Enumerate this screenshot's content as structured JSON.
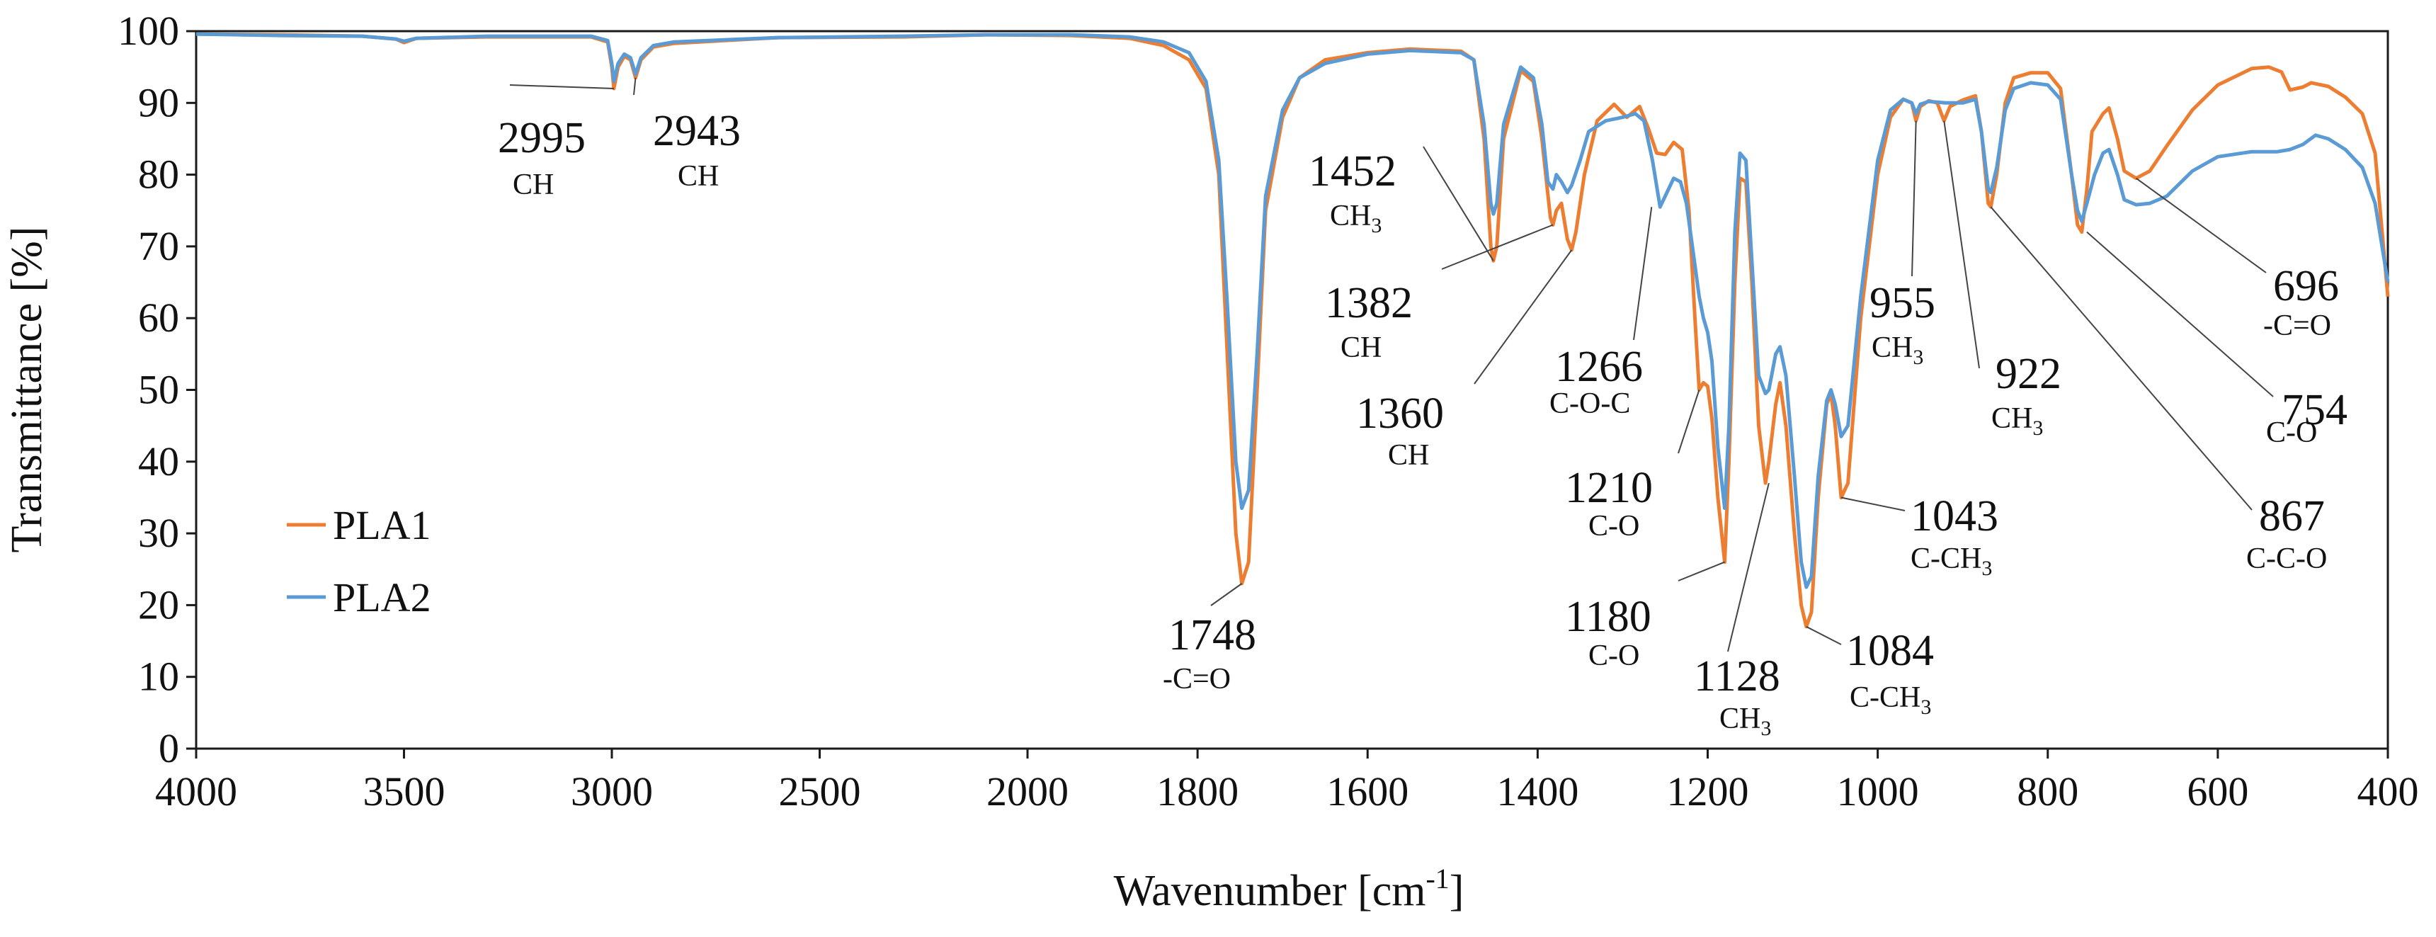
{
  "chart_data": {
    "type": "line",
    "title": "",
    "xlabel": "Wavenumber [cm",
    "xlabel_sup": "-1",
    "xlabel_suffix": "]",
    "ylabel": "Transmittance [%]",
    "xlim": [
      4000,
      400
    ],
    "ylim": [
      0,
      100
    ],
    "x_ticks": [
      4000,
      3500,
      3000,
      2500,
      2000,
      1800,
      1600,
      1400,
      1200,
      1000,
      800,
      600,
      400
    ],
    "y_ticks": [
      0,
      10,
      20,
      30,
      40,
      50,
      60,
      70,
      80,
      90,
      100
    ],
    "grid": false,
    "legend_position": "left-bottom",
    "series": [
      {
        "name": "PLA1",
        "color": "#ED7D31",
        "points": [
          [
            4000,
            99.6
          ],
          [
            3800,
            99.5
          ],
          [
            3600,
            99.3
          ],
          [
            3520,
            98.9
          ],
          [
            3500,
            98.4
          ],
          [
            3470,
            99.0
          ],
          [
            3300,
            99.2
          ],
          [
            3050,
            99.2
          ],
          [
            3010,
            98.5
          ],
          [
            3000,
            95.0
          ],
          [
            2995,
            92.0
          ],
          [
            2985,
            95.0
          ],
          [
            2970,
            96.5
          ],
          [
            2955,
            96.0
          ],
          [
            2943,
            93.5
          ],
          [
            2930,
            96.0
          ],
          [
            2900,
            97.8
          ],
          [
            2850,
            98.3
          ],
          [
            2600,
            99.1
          ],
          [
            2300,
            99.2
          ],
          [
            2100,
            99.5
          ],
          [
            1950,
            99.4
          ],
          [
            1880,
            99.0
          ],
          [
            1840,
            98.0
          ],
          [
            1810,
            96.0
          ],
          [
            1790,
            92.0
          ],
          [
            1775,
            80.0
          ],
          [
            1765,
            55.0
          ],
          [
            1755,
            30.0
          ],
          [
            1748,
            23.0
          ],
          [
            1740,
            26.0
          ],
          [
            1730,
            50.0
          ],
          [
            1720,
            75.0
          ],
          [
            1700,
            88.0
          ],
          [
            1680,
            93.5
          ],
          [
            1650,
            96.0
          ],
          [
            1600,
            97.0
          ],
          [
            1550,
            97.5
          ],
          [
            1490,
            97.2
          ],
          [
            1475,
            96.0
          ],
          [
            1463,
            85.0
          ],
          [
            1455,
            70.0
          ],
          [
            1452,
            68.0
          ],
          [
            1448,
            70.0
          ],
          [
            1440,
            85.0
          ],
          [
            1420,
            94.5
          ],
          [
            1405,
            93.0
          ],
          [
            1395,
            85.0
          ],
          [
            1385,
            74.0
          ],
          [
            1382,
            73.0
          ],
          [
            1378,
            75.0
          ],
          [
            1372,
            76.0
          ],
          [
            1365,
            71.0
          ],
          [
            1360,
            69.5
          ],
          [
            1355,
            72.0
          ],
          [
            1345,
            80.0
          ],
          [
            1330,
            87.5
          ],
          [
            1310,
            89.8
          ],
          [
            1295,
            88.0
          ],
          [
            1280,
            89.5
          ],
          [
            1270,
            86.5
          ],
          [
            1260,
            83.0
          ],
          [
            1250,
            82.8
          ],
          [
            1240,
            84.5
          ],
          [
            1230,
            83.5
          ],
          [
            1222,
            75.0
          ],
          [
            1215,
            60.0
          ],
          [
            1210,
            50.0
          ],
          [
            1205,
            51.0
          ],
          [
            1200,
            50.5
          ],
          [
            1195,
            46.0
          ],
          [
            1188,
            35.0
          ],
          [
            1180,
            26.0
          ],
          [
            1175,
            40.0
          ],
          [
            1168,
            65.0
          ],
          [
            1162,
            79.5
          ],
          [
            1155,
            79.0
          ],
          [
            1148,
            65.0
          ],
          [
            1140,
            45.0
          ],
          [
            1132,
            37.0
          ],
          [
            1128,
            40.0
          ],
          [
            1120,
            48.0
          ],
          [
            1115,
            51.0
          ],
          [
            1108,
            45.0
          ],
          [
            1098,
            30.0
          ],
          [
            1090,
            20.0
          ],
          [
            1084,
            17.0
          ],
          [
            1078,
            19.0
          ],
          [
            1070,
            35.0
          ],
          [
            1060,
            48.0
          ],
          [
            1055,
            49.5
          ],
          [
            1050,
            45.0
          ],
          [
            1043,
            35.0
          ],
          [
            1035,
            37.0
          ],
          [
            1020,
            60.0
          ],
          [
            1000,
            80.0
          ],
          [
            985,
            88.0
          ],
          [
            970,
            90.5
          ],
          [
            960,
            90.0
          ],
          [
            955,
            87.5
          ],
          [
            950,
            89.5
          ],
          [
            940,
            90.3
          ],
          [
            930,
            90.0
          ],
          [
            922,
            87.5
          ],
          [
            915,
            89.5
          ],
          [
            900,
            90.4
          ],
          [
            885,
            91.0
          ],
          [
            878,
            86.0
          ],
          [
            870,
            76.0
          ],
          [
            867,
            75.5
          ],
          [
            860,
            80.0
          ],
          [
            850,
            90.0
          ],
          [
            840,
            93.5
          ],
          [
            820,
            94.2
          ],
          [
            800,
            94.2
          ],
          [
            785,
            92.0
          ],
          [
            772,
            80.0
          ],
          [
            765,
            73.0
          ],
          [
            760,
            72.0
          ],
          [
            754,
            78.0
          ],
          [
            748,
            86.0
          ],
          [
            735,
            88.5
          ],
          [
            728,
            89.3
          ],
          [
            718,
            85.0
          ],
          [
            710,
            80.5
          ],
          [
            696,
            79.5
          ],
          [
            680,
            80.5
          ],
          [
            660,
            84.0
          ],
          [
            630,
            89.0
          ],
          [
            600,
            92.5
          ],
          [
            560,
            94.8
          ],
          [
            540,
            95.0
          ],
          [
            525,
            94.3
          ],
          [
            515,
            91.8
          ],
          [
            500,
            92.2
          ],
          [
            490,
            92.8
          ],
          [
            470,
            92.3
          ],
          [
            450,
            90.8
          ],
          [
            430,
            88.5
          ],
          [
            415,
            83.0
          ],
          [
            400,
            63.0
          ]
        ]
      },
      {
        "name": "PLA2",
        "color": "#5B9BD5",
        "points": [
          [
            4000,
            99.6
          ],
          [
            3800,
            99.4
          ],
          [
            3600,
            99.3
          ],
          [
            3520,
            98.9
          ],
          [
            3500,
            98.6
          ],
          [
            3470,
            99.0
          ],
          [
            3300,
            99.3
          ],
          [
            3050,
            99.3
          ],
          [
            3010,
            98.7
          ],
          [
            3000,
            95.5
          ],
          [
            2995,
            93.0
          ],
          [
            2985,
            95.5
          ],
          [
            2970,
            96.8
          ],
          [
            2955,
            96.3
          ],
          [
            2943,
            94.0
          ],
          [
            2930,
            96.3
          ],
          [
            2900,
            98.0
          ],
          [
            2850,
            98.5
          ],
          [
            2600,
            99.1
          ],
          [
            2300,
            99.3
          ],
          [
            2100,
            99.5
          ],
          [
            1950,
            99.5
          ],
          [
            1880,
            99.2
          ],
          [
            1840,
            98.5
          ],
          [
            1810,
            97.0
          ],
          [
            1790,
            93.0
          ],
          [
            1775,
            82.0
          ],
          [
            1765,
            62.0
          ],
          [
            1755,
            40.0
          ],
          [
            1748,
            33.5
          ],
          [
            1740,
            36.0
          ],
          [
            1730,
            55.0
          ],
          [
            1720,
            77.0
          ],
          [
            1700,
            89.0
          ],
          [
            1680,
            93.5
          ],
          [
            1650,
            95.5
          ],
          [
            1600,
            96.8
          ],
          [
            1550,
            97.3
          ],
          [
            1490,
            97.0
          ],
          [
            1475,
            96.0
          ],
          [
            1463,
            87.0
          ],
          [
            1455,
            76.0
          ],
          [
            1452,
            74.5
          ],
          [
            1448,
            76.0
          ],
          [
            1440,
            87.0
          ],
          [
            1420,
            95.0
          ],
          [
            1405,
            93.5
          ],
          [
            1395,
            87.0
          ],
          [
            1388,
            79.0
          ],
          [
            1382,
            78.0
          ],
          [
            1378,
            80.0
          ],
          [
            1372,
            79.0
          ],
          [
            1365,
            77.5
          ],
          [
            1360,
            78.5
          ],
          [
            1350,
            82.0
          ],
          [
            1340,
            86.0
          ],
          [
            1320,
            87.5
          ],
          [
            1300,
            88.0
          ],
          [
            1285,
            88.5
          ],
          [
            1275,
            87.5
          ],
          [
            1265,
            82.0
          ],
          [
            1256,
            75.5
          ],
          [
            1250,
            77.0
          ],
          [
            1240,
            79.5
          ],
          [
            1232,
            79.0
          ],
          [
            1225,
            76.0
          ],
          [
            1218,
            70.0
          ],
          [
            1210,
            63.0
          ],
          [
            1205,
            60.0
          ],
          [
            1200,
            58.0
          ],
          [
            1195,
            54.0
          ],
          [
            1188,
            42.0
          ],
          [
            1180,
            33.5
          ],
          [
            1175,
            45.0
          ],
          [
            1168,
            72.0
          ],
          [
            1162,
            83.0
          ],
          [
            1155,
            82.0
          ],
          [
            1148,
            68.0
          ],
          [
            1140,
            52.0
          ],
          [
            1132,
            49.5
          ],
          [
            1128,
            50.0
          ],
          [
            1120,
            55.0
          ],
          [
            1115,
            56.0
          ],
          [
            1108,
            52.0
          ],
          [
            1098,
            38.0
          ],
          [
            1090,
            26.0
          ],
          [
            1084,
            22.5
          ],
          [
            1078,
            24.0
          ],
          [
            1070,
            38.0
          ],
          [
            1060,
            48.5
          ],
          [
            1055,
            50.0
          ],
          [
            1050,
            48.0
          ],
          [
            1043,
            43.5
          ],
          [
            1035,
            45.0
          ],
          [
            1020,
            63.0
          ],
          [
            1000,
            82.0
          ],
          [
            985,
            89.0
          ],
          [
            970,
            90.5
          ],
          [
            960,
            90.0
          ],
          [
            955,
            88.5
          ],
          [
            950,
            89.8
          ],
          [
            940,
            90.2
          ],
          [
            920,
            90.0
          ],
          [
            900,
            90.0
          ],
          [
            885,
            90.5
          ],
          [
            878,
            86.0
          ],
          [
            870,
            78.0
          ],
          [
            867,
            77.5
          ],
          [
            860,
            81.0
          ],
          [
            850,
            89.0
          ],
          [
            840,
            92.0
          ],
          [
            820,
            92.8
          ],
          [
            800,
            92.5
          ],
          [
            785,
            90.5
          ],
          [
            772,
            80.0
          ],
          [
            765,
            75.0
          ],
          [
            760,
            73.5
          ],
          [
            754,
            76.0
          ],
          [
            745,
            80.0
          ],
          [
            735,
            83.0
          ],
          [
            728,
            83.5
          ],
          [
            718,
            80.0
          ],
          [
            710,
            76.5
          ],
          [
            696,
            75.8
          ],
          [
            680,
            76.0
          ],
          [
            660,
            77.0
          ],
          [
            630,
            80.5
          ],
          [
            600,
            82.5
          ],
          [
            560,
            83.2
          ],
          [
            530,
            83.2
          ],
          [
            515,
            83.5
          ],
          [
            500,
            84.2
          ],
          [
            485,
            85.5
          ],
          [
            470,
            85.0
          ],
          [
            450,
            83.5
          ],
          [
            430,
            81.0
          ],
          [
            415,
            76.0
          ],
          [
            400,
            65.0
          ]
        ]
      }
    ],
    "annotations": [
      {
        "num": "2995",
        "sub": "CH"
      },
      {
        "num": "2943",
        "sub": "CH"
      },
      {
        "num": "1452",
        "sub": "CH",
        "sub_index": "3"
      },
      {
        "num": "1382",
        "sub": "CH"
      },
      {
        "num": "1360",
        "sub": "CH"
      },
      {
        "num": "1266",
        "sub": "C-O-C"
      },
      {
        "num": "1210",
        "sub": "C-O"
      },
      {
        "num": "1180",
        "sub": "C-O"
      },
      {
        "num": "1128",
        "sub": "CH",
        "sub_index": "3"
      },
      {
        "num": "1084",
        "sub": "C-CH",
        "sub_index": "3"
      },
      {
        "num": "1043",
        "sub": "C-CH",
        "sub_index": "3"
      },
      {
        "num": "1748",
        "sub": "-C=O"
      },
      {
        "num": "955",
        "sub": "CH",
        "sub_index": "3"
      },
      {
        "num": "922",
        "sub": "CH",
        "sub_index": "3"
      },
      {
        "num": "867",
        "sub": "C-C-O"
      },
      {
        "num": "754",
        "sub": "C-O"
      },
      {
        "num": "696",
        "sub": "-C=O"
      }
    ]
  }
}
